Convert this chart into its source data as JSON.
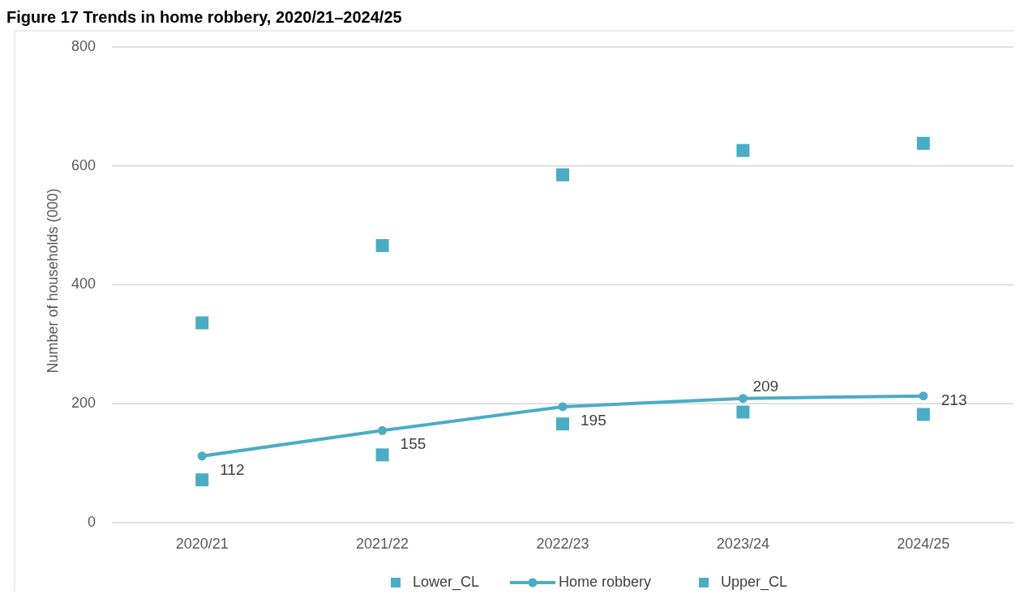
{
  "chart_data": {
    "type": "line",
    "title": "Figure 17    Trends in home robbery, 2020/21–2024/25",
    "ylabel": "Number of households (000)",
    "categories": [
      "2020/21",
      "2021/22",
      "2022/23",
      "2023/24",
      "2024/25"
    ],
    "series": [
      {
        "name": "Lower_CL",
        "type": "scatter",
        "marker": "square",
        "color": "#4bacc6",
        "values": [
          72,
          114,
          166,
          186,
          182
        ]
      },
      {
        "name": "Home robbery",
        "type": "line",
        "marker": "circle",
        "color": "#4bacc6",
        "values": [
          112,
          155,
          195,
          209,
          213
        ],
        "value_labels": [
          "112",
          "155",
          "195",
          "209",
          "213"
        ]
      },
      {
        "name": "Upper_CL",
        "type": "scatter",
        "marker": "square",
        "color": "#4bacc6",
        "values": [
          336,
          466,
          585,
          626,
          638
        ]
      }
    ],
    "ylim": [
      0,
      800
    ],
    "yticks": [
      0,
      200,
      400,
      600,
      800
    ],
    "grid": "y",
    "legend": "bottom"
  }
}
